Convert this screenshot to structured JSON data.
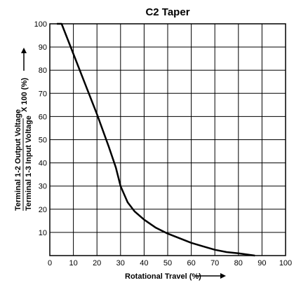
{
  "chart_data": {
    "type": "line",
    "title": "C2 Taper",
    "xlabel": "Rotational Travel (%)",
    "ylabel_numerator": "Terminal 1-2 Output Voltage",
    "ylabel_denominator": "Terminal 1-3 Input Voltage",
    "ylabel_multiplier": "X 100 (%)",
    "xlim": [
      0,
      100
    ],
    "ylim": [
      0,
      100
    ],
    "xticks": [
      0,
      10,
      20,
      30,
      40,
      50,
      60,
      70,
      80,
      90,
      100
    ],
    "yticks": [
      10,
      20,
      30,
      40,
      50,
      60,
      70,
      80,
      90,
      100
    ],
    "grid": true,
    "series": [
      {
        "x": [
          3,
          5,
          10,
          15,
          20,
          25,
          28,
          30,
          33,
          36,
          40,
          45,
          50,
          55,
          60,
          65,
          70,
          75,
          80,
          87
        ],
        "y": [
          100,
          100,
          87,
          74,
          61,
          47,
          38,
          30,
          23,
          19,
          15.5,
          12,
          9.5,
          7.5,
          5.5,
          4,
          2.5,
          1.5,
          1,
          0
        ]
      }
    ],
    "line_color": "#000000"
  }
}
